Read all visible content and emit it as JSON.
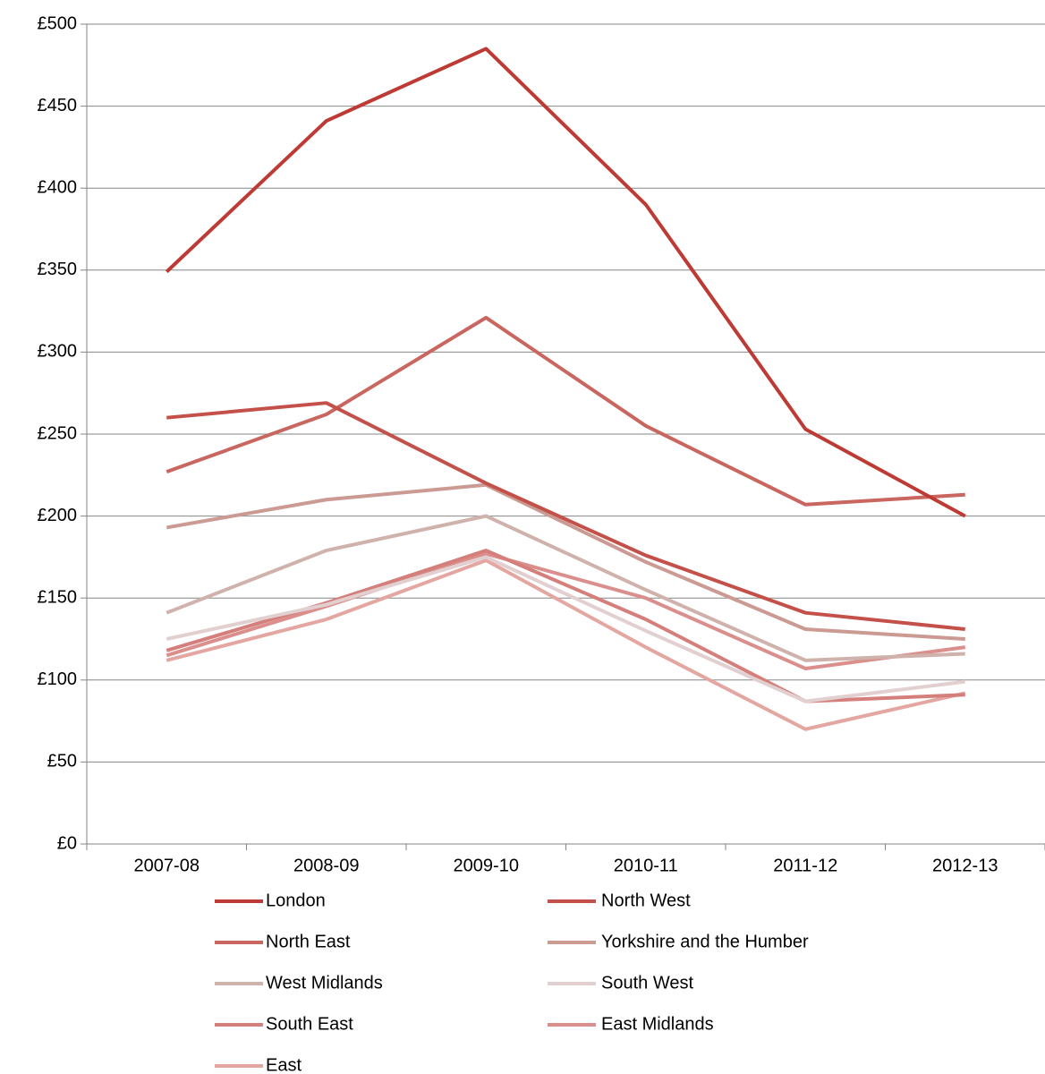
{
  "chart_data": {
    "type": "line",
    "categories": [
      "2007-08",
      "2008-09",
      "2009-10",
      "2010-11",
      "2011-12",
      "2012-13"
    ],
    "series": [
      {
        "name": "London",
        "color": "#be3a34",
        "values": [
          349,
          441,
          485,
          390,
          253,
          200
        ]
      },
      {
        "name": "North West",
        "color": "#c4504a",
        "values": [
          260,
          269,
          220,
          176,
          141,
          131
        ]
      },
      {
        "name": "North East",
        "color": "#c9665f",
        "values": [
          227,
          262,
          321,
          255,
          207,
          213
        ]
      },
      {
        "name": "Yorkshire and the Humber",
        "color": "#cb9a93",
        "values": [
          193,
          210,
          219,
          172,
          131,
          125
        ]
      },
      {
        "name": "West Midlands",
        "color": "#cfb2ab",
        "values": [
          141,
          179,
          200,
          155,
          112,
          116
        ]
      },
      {
        "name": "South West",
        "color": "#e2cfd0",
        "values": [
          125,
          146,
          175,
          130,
          87,
          99
        ]
      },
      {
        "name": "South East",
        "color": "#d47f7b",
        "values": [
          118,
          147,
          179,
          137,
          87,
          91
        ]
      },
      {
        "name": "East Midlands",
        "color": "#db8f8c",
        "values": [
          115,
          145,
          177,
          150,
          107,
          120
        ]
      },
      {
        "name": "East",
        "color": "#e4a6a1",
        "values": [
          112,
          137,
          173,
          120,
          70,
          92
        ]
      }
    ],
    "ylim": [
      0,
      500
    ],
    "yticks": [
      {
        "value": 0,
        "label": "£0"
      },
      {
        "value": 50,
        "label": "£50"
      },
      {
        "value": 100,
        "label": "£100"
      },
      {
        "value": 150,
        "label": "£150"
      },
      {
        "value": 200,
        "label": "£200"
      },
      {
        "value": 250,
        "label": "£250"
      },
      {
        "value": 300,
        "label": "£300"
      },
      {
        "value": 350,
        "label": "£350"
      },
      {
        "value": 400,
        "label": "£400"
      },
      {
        "value": 450,
        "label": "£450"
      },
      {
        "value": 500,
        "label": "£500"
      }
    ],
    "grid": true
  }
}
